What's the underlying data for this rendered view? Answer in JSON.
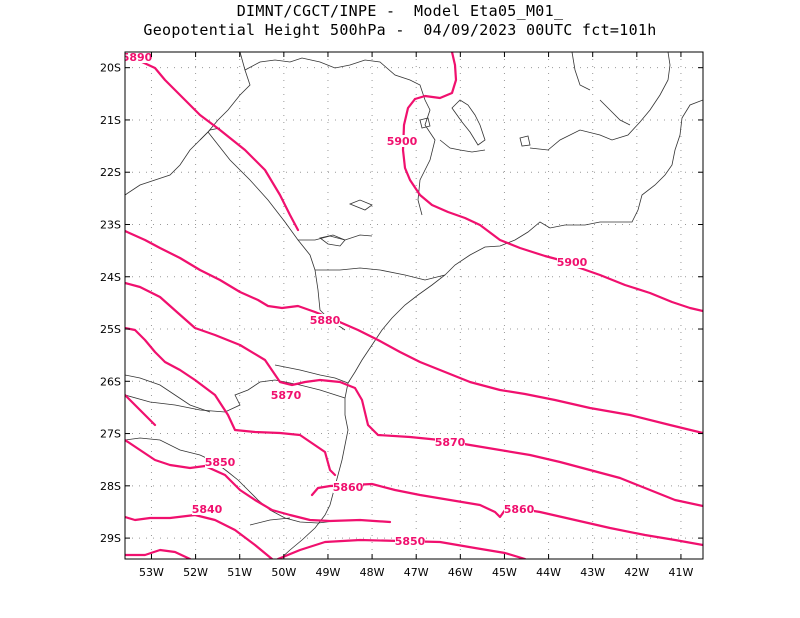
{
  "header": {
    "line1": "DIMNT/CGCT/INPE -  Model Eta05_M01_",
    "line2": "Geopotential Height 500hPa -  04/09/2023 00UTC fct=101h"
  },
  "axes": {
    "lat_ticks": [
      "20S",
      "21S",
      "22S",
      "23S",
      "24S",
      "25S",
      "26S",
      "27S",
      "28S",
      "29S"
    ],
    "lon_ticks": [
      "53W",
      "52W",
      "51W",
      "50W",
      "49W",
      "48W",
      "47W",
      "46W",
      "45W",
      "44W",
      "43W",
      "42W",
      "41W"
    ],
    "lat_range": [
      -29.4,
      -19.7
    ],
    "lon_range": [
      -53.6,
      -40.5
    ]
  },
  "contour_color": "#f0106e",
  "contour_labels": [
    "5890",
    "5900",
    "5900",
    "5880",
    "5870",
    "5870",
    "5860",
    "5860",
    "5850",
    "5850",
    "5840"
  ]
}
